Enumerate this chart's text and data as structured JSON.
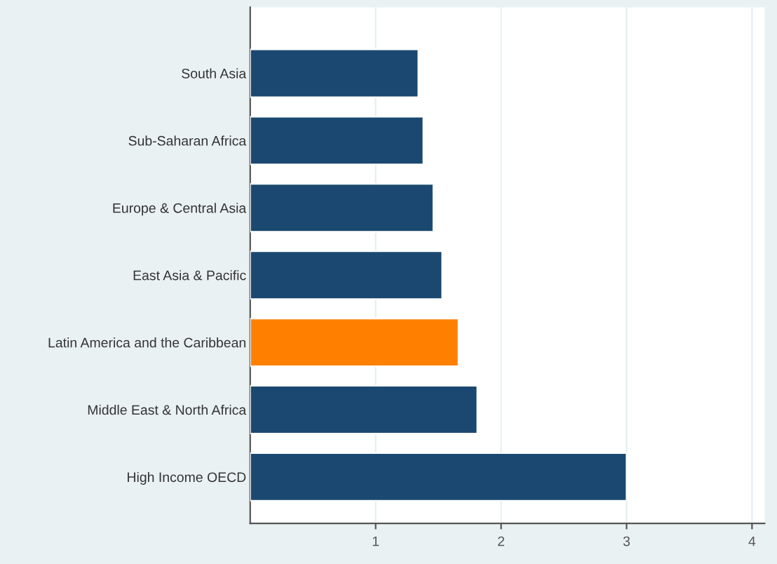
{
  "chart_data": {
    "type": "bar",
    "orientation": "horizontal",
    "categories": [
      "South Asia",
      "Sub-Saharan Africa",
      "Europe & Central Asia",
      "East Asia & Pacific",
      "Latin America and the Caribbean",
      "Middle East & North Africa",
      "High Income OECD"
    ],
    "values": [
      1.34,
      1.38,
      1.46,
      1.53,
      1.66,
      1.81,
      3.0
    ],
    "colors": [
      "#1a4870",
      "#1a4870",
      "#1a4870",
      "#1a4870",
      "#ff8000",
      "#1a4870",
      "#1a4870"
    ],
    "xlim": [
      0,
      4.1
    ],
    "xticks": [
      1,
      2,
      3,
      4
    ],
    "grid": "x"
  }
}
